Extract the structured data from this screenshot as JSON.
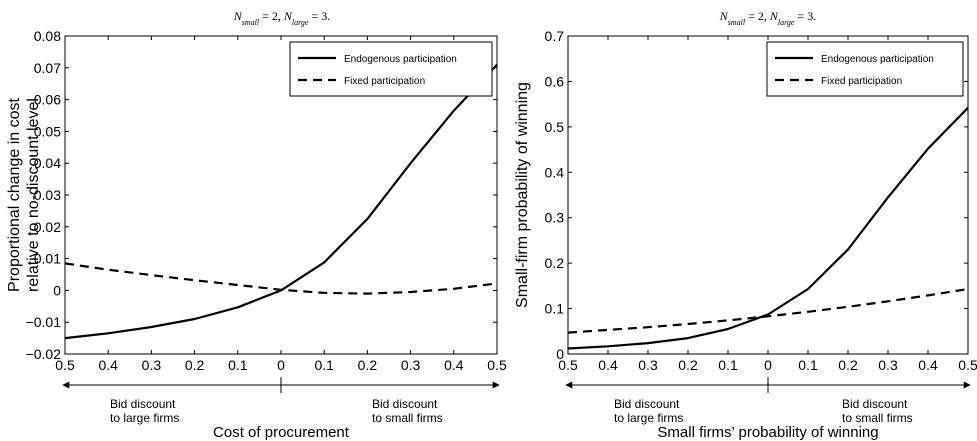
{
  "chart_data": [
    {
      "type": "line",
      "title": {
        "n_small_label": "N",
        "n_small_sub": "small",
        "n_small_value": " = 2, ",
        "n_large_label": "N",
        "n_large_sub": "large",
        "n_large_value": " = 3."
      },
      "ylabel_line1": "Proportional change in cost",
      "ylabel_line2": "relative to no-discount level",
      "xlabel": "Cost of procurement",
      "x": [
        -0.5,
        -0.4,
        -0.3,
        -0.2,
        -0.1,
        0,
        0.1,
        0.2,
        0.3,
        0.4,
        0.5
      ],
      "x_tick_labels": [
        "0.5",
        "0.4",
        "0.3",
        "0.2",
        "0.1",
        "0",
        "0.1",
        "0.2",
        "0.3",
        "0.4",
        "0.5"
      ],
      "xlim": [
        -0.5,
        0.5
      ],
      "ylim": [
        -0.02,
        0.08
      ],
      "y_ticks": [
        -0.02,
        -0.01,
        0,
        0.01,
        0.02,
        0.03,
        0.04,
        0.05,
        0.06,
        0.07,
        0.08
      ],
      "y_tick_labels": [
        "−0.02",
        "−0.01",
        "0",
        "0.01",
        "0.02",
        "0.03",
        "0.04",
        "0.05",
        "0.06",
        "0.07",
        "0.08"
      ],
      "legend_position": "top-right",
      "series": [
        {
          "name": "Endogenous participation",
          "style": "solid",
          "values": [
            -0.015,
            -0.0135,
            -0.0115,
            -0.009,
            -0.0053,
            0,
            0.0088,
            0.0225,
            0.04,
            0.0565,
            0.071
          ]
        },
        {
          "name": "Fixed participation",
          "style": "dashed",
          "values": [
            0.0085,
            0.0065,
            0.0048,
            0.0032,
            0.0017,
            0.0002,
            -0.0008,
            -0.001,
            -0.0005,
            0.0005,
            0.0022
          ]
        }
      ],
      "left_annotation_line1": "Bid discount",
      "left_annotation_line2": "to large firms",
      "right_annotation_line1": "Bid discount",
      "right_annotation_line2": "to small firms"
    },
    {
      "type": "line",
      "title": {
        "n_small_label": "N",
        "n_small_sub": "small",
        "n_small_value": " = 2, ",
        "n_large_label": "N",
        "n_large_sub": "large",
        "n_large_value": " = 3."
      },
      "ylabel_line1": "Small-firm probability of winning",
      "xlabel": "Small firms’ probability of winning",
      "x": [
        -0.5,
        -0.4,
        -0.3,
        -0.2,
        -0.1,
        0,
        0.1,
        0.2,
        0.3,
        0.4,
        0.5
      ],
      "x_tick_labels": [
        "0.5",
        "0.4",
        "0.3",
        "0.2",
        "0.1",
        "0",
        "0.1",
        "0.2",
        "0.3",
        "0.4",
        "0.5"
      ],
      "xlim": [
        -0.5,
        0.5
      ],
      "ylim": [
        0,
        0.7
      ],
      "y_ticks": [
        0,
        0.1,
        0.2,
        0.3,
        0.4,
        0.5,
        0.6,
        0.7
      ],
      "y_tick_labels": [
        "0",
        "0.1",
        "0.2",
        "0.3",
        "0.4",
        "0.5",
        "0.6",
        "0.7"
      ],
      "legend_position": "top-right",
      "series": [
        {
          "name": "Endogenous participation",
          "style": "solid",
          "values": [
            0.012,
            0.017,
            0.024,
            0.035,
            0.055,
            0.087,
            0.143,
            0.23,
            0.345,
            0.452,
            0.542
          ]
        },
        {
          "name": "Fixed participation",
          "style": "dashed",
          "values": [
            0.047,
            0.053,
            0.059,
            0.066,
            0.074,
            0.083,
            0.093,
            0.104,
            0.116,
            0.129,
            0.143
          ]
        }
      ],
      "left_annotation_line1": "Bid discount",
      "left_annotation_line2": "to large firms",
      "right_annotation_line1": "Bid discount",
      "right_annotation_line2": "to small firms"
    }
  ]
}
